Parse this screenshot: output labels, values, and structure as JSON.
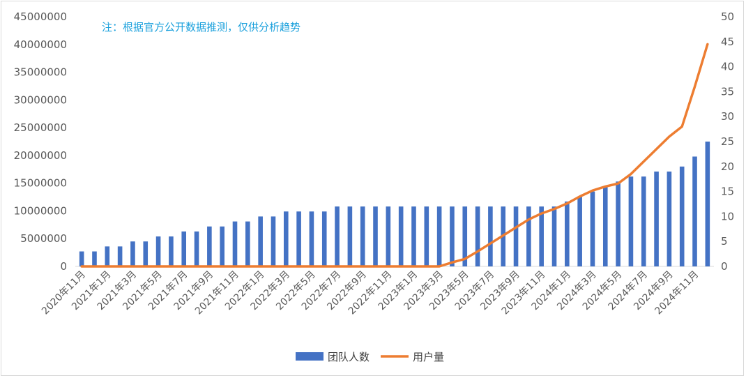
{
  "note": "注：根据官方公开数据推测，仅供分析趋势",
  "chart_data": {
    "type": "bar",
    "title": "",
    "xlabel": "",
    "ylabel": "",
    "ylim": [
      0,
      45000000
    ],
    "y2lim": [
      0,
      50
    ],
    "yticks": [
      "0",
      "5000000",
      "10000000",
      "15000000",
      "20000000",
      "25000000",
      "30000000",
      "35000000",
      "40000000",
      "45000000"
    ],
    "y2ticks": [
      "0",
      "5",
      "10",
      "15",
      "20",
      "25",
      "30",
      "35",
      "40",
      "45",
      "50"
    ],
    "categories": [
      "2020年11月",
      "2020年12月",
      "2021年1月",
      "2021年2月",
      "2021年3月",
      "2021年4月",
      "2021年5月",
      "2021年6月",
      "2021年7月",
      "2021年8月",
      "2021年9月",
      "2021年10月",
      "2021年11月",
      "2021年12月",
      "2022年1月",
      "2022年2月",
      "2022年3月",
      "2022年4月",
      "2022年5月",
      "2022年6月",
      "2022年7月",
      "2022年8月",
      "2022年9月",
      "2022年10月",
      "2022年11月",
      "2022年12月",
      "2023年1月",
      "2023年2月",
      "2023年3月",
      "2023年4月",
      "2023年5月",
      "2023年6月",
      "2023年7月",
      "2023年8月",
      "2023年9月",
      "2023年10月",
      "2023年11月",
      "2023年12月",
      "2024年1月",
      "2024年2月",
      "2024年3月",
      "2024年4月",
      "2024年5月",
      "2024年6月",
      "2024年7月",
      "2024年8月",
      "2024年9月",
      "2024年10月",
      "2024年11月",
      "2024年12月"
    ],
    "tick_labels": [
      "2020年11月",
      "2021年1月",
      "2021年3月",
      "2021年5月",
      "2021年7月",
      "2021年9月",
      "2021年11月",
      "2022年1月",
      "2022年3月",
      "2022年5月",
      "2022年7月",
      "2022年9月",
      "2022年11月",
      "2023年1月",
      "2023年3月",
      "2023年5月",
      "2023年7月",
      "2023年9月",
      "2023年11月",
      "2024年1月",
      "2024年3月",
      "2024年5月",
      "2024年7月",
      "2024年9月",
      "2024年11月"
    ],
    "series": [
      {
        "name": "团队人数",
        "type": "bar",
        "axis": "left",
        "color": "#4472c4",
        "values": [
          2700000,
          2700000,
          3600000,
          3600000,
          4500000,
          4500000,
          5400000,
          5400000,
          6300000,
          6300000,
          7200000,
          7200000,
          8100000,
          8100000,
          9000000,
          9000000,
          9900000,
          9900000,
          9900000,
          9900000,
          10800000,
          10800000,
          10800000,
          10800000,
          10800000,
          10800000,
          10800000,
          10800000,
          10800000,
          10800000,
          10800000,
          10800000,
          10800000,
          10800000,
          10800000,
          10800000,
          10800000,
          10800000,
          11700000,
          12600000,
          13500000,
          14400000,
          15300000,
          16200000,
          16200000,
          17100000,
          17100000,
          18000000,
          19800000,
          22500000
        ]
      },
      {
        "name": "用户量",
        "type": "line",
        "axis": "right",
        "color": "#ed7d31",
        "values": [
          0,
          0,
          0,
          0,
          0,
          0,
          0,
          0,
          0,
          0,
          0,
          0,
          0,
          0,
          0,
          0,
          0,
          0,
          0,
          0,
          0,
          0,
          0,
          0,
          0,
          0,
          0,
          0,
          0,
          0.8,
          1.5,
          3,
          4.6,
          6.2,
          7.8,
          9.4,
          10.6,
          11.5,
          12.6,
          14,
          15.2,
          16,
          16.6,
          18.5,
          21,
          23.5,
          26,
          28,
          36,
          44.5
        ]
      }
    ],
    "legend": "bottom"
  }
}
